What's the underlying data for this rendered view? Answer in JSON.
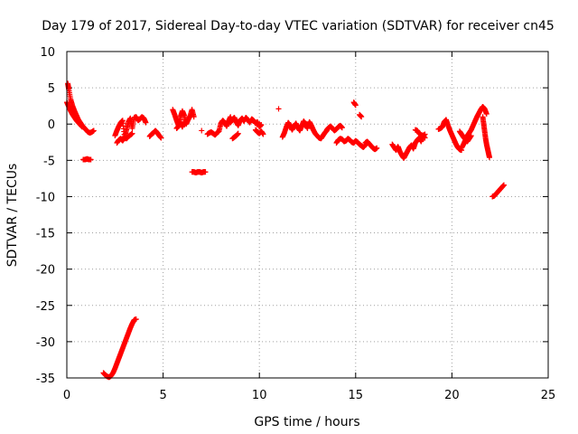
{
  "chart_data": {
    "type": "scatter",
    "title": "Day 179 of 2017, Sidereal Day-to-day VTEC variation (SDTVAR) for receiver cn45",
    "xlabel": "GPS time / hours",
    "ylabel": "SDTVAR / TECUs",
    "xlim": [
      0,
      25
    ],
    "ylim": [
      -35,
      10
    ],
    "xticks": [
      0,
      5,
      10,
      15,
      20,
      25
    ],
    "yticks": [
      10,
      5,
      0,
      -5,
      -10,
      -15,
      -20,
      -25,
      -30,
      -35
    ],
    "grid": true,
    "marker": "plus",
    "color": "#ff0000",
    "segments": [
      {
        "x": [
          0.05,
          0.1,
          0.2,
          0.3,
          0.4,
          0.5,
          0.6,
          0.7,
          0.8,
          0.9,
          1.0,
          1.1,
          1.2,
          1.3,
          1.4
        ],
        "y": [
          5.6,
          4.8,
          3.4,
          2.5,
          1.8,
          1.2,
          0.6,
          0.2,
          -0.2,
          -0.5,
          -0.8,
          -1.1,
          -1.2,
          -1.1,
          -0.9
        ]
      },
      {
        "x": [
          0.0,
          0.1,
          0.2,
          0.3,
          0.4,
          0.5,
          0.6,
          0.7,
          0.8
        ],
        "y": [
          3.0,
          2.4,
          1.8,
          1.3,
          0.9,
          0.5,
          0.2,
          -0.1,
          -0.4
        ]
      },
      {
        "x": [
          0.85,
          0.95,
          1.05,
          1.15,
          1.25
        ],
        "y": [
          -4.9,
          -4.9,
          -4.8,
          -4.9,
          -4.9
        ]
      },
      {
        "x": [
          1.9,
          2.0,
          2.1,
          2.2,
          2.3,
          2.4,
          2.5,
          2.6,
          2.7,
          2.8,
          2.9,
          3.0,
          3.1,
          3.2,
          3.3,
          3.4,
          3.5,
          3.6
        ],
        "y": [
          -34.3,
          -34.6,
          -34.8,
          -34.9,
          -34.7,
          -34.3,
          -33.7,
          -33.0,
          -32.3,
          -31.6,
          -30.9,
          -30.2,
          -29.5,
          -28.8,
          -28.1,
          -27.5,
          -27.0,
          -26.9
        ]
      },
      {
        "x": [
          2.5,
          2.6,
          2.7,
          2.8,
          2.9,
          3.0,
          3.1,
          3.2,
          3.3,
          3.4,
          3.5,
          3.6,
          3.7,
          3.8,
          3.9,
          4.0,
          4.1
        ],
        "y": [
          -1.6,
          -0.9,
          -0.3,
          0.2,
          0.5,
          -1.8,
          -0.8,
          0.3,
          0.8,
          -0.6,
          0.9,
          1.0,
          0.5,
          0.7,
          1.0,
          0.8,
          0.2
        ]
      },
      {
        "x": [
          2.6,
          2.7,
          2.8,
          2.9,
          3.0,
          3.1,
          3.2,
          3.3,
          3.4
        ],
        "y": [
          -2.6,
          -2.2,
          -2.0,
          -2.3,
          -1.9,
          -2.0,
          -1.7,
          -1.5,
          -1.3
        ]
      },
      {
        "x": [
          4.3,
          4.4,
          4.5,
          4.6,
          4.7,
          4.8,
          4.9
        ],
        "y": [
          -1.7,
          -1.4,
          -1.2,
          -0.9,
          -1.2,
          -1.6,
          -1.9
        ]
      },
      {
        "x": [
          5.5,
          5.6,
          5.7,
          5.8,
          5.9,
          6.0,
          6.1,
          6.2,
          6.3,
          6.4,
          6.5,
          6.6
        ],
        "y": [
          2.0,
          1.3,
          0.5,
          -0.2,
          1.0,
          1.8,
          1.2,
          0.0,
          0.6,
          1.1,
          2.0,
          1.0
        ]
      },
      {
        "x": [
          5.7,
          5.8,
          5.9,
          6.0,
          6.1
        ],
        "y": [
          -0.6,
          -0.3,
          0.2,
          -0.4,
          0.3
        ]
      },
      {
        "x": [
          6.5,
          6.6,
          6.7,
          6.8,
          6.9,
          7.0,
          7.1,
          7.2
        ],
        "y": [
          -6.6,
          -6.6,
          -6.7,
          -6.6,
          -6.6,
          -6.7,
          -6.6,
          -6.6
        ]
      },
      {
        "x": [
          7.0
        ],
        "y": [
          -0.9
        ]
      },
      {
        "x": [
          7.3,
          7.4,
          7.5,
          7.6,
          7.7,
          7.8,
          7.9,
          8.0,
          8.1,
          8.2,
          8.3,
          8.4,
          8.5
        ],
        "y": [
          -1.4,
          -1.2,
          -1.1,
          -1.3,
          -1.5,
          -1.2,
          -1.0,
          0.1,
          0.5,
          0.2,
          -0.3,
          0.4,
          1.0
        ]
      },
      {
        "x": [
          8.5,
          8.6,
          8.7,
          8.8,
          8.9,
          9.0,
          9.1,
          9.2,
          9.3,
          9.4,
          9.5,
          9.6,
          9.7,
          9.8,
          9.9,
          10.0,
          10.1
        ],
        "y": [
          0.2,
          0.6,
          0.9,
          0.3,
          -0.2,
          0.5,
          0.8,
          0.4,
          0.9,
          0.6,
          0.2,
          0.7,
          0.5,
          0.1,
          0.3,
          -0.4,
          -0.1
        ]
      },
      {
        "x": [
          8.6,
          8.7,
          8.8,
          8.9
        ],
        "y": [
          -2.0,
          -1.8,
          -1.6,
          -1.3
        ]
      },
      {
        "x": [
          9.8,
          9.9,
          10.0,
          10.1,
          10.2
        ],
        "y": [
          -0.8,
          -1.1,
          -1.3,
          -1.0,
          -1.4
        ]
      },
      {
        "x": [
          11.0
        ],
        "y": [
          2.1
        ]
      },
      {
        "x": [
          11.2,
          11.3,
          11.4,
          11.5,
          11.6,
          11.7,
          11.8,
          11.9,
          12.0,
          12.1,
          12.2,
          12.3,
          12.4,
          12.5
        ],
        "y": [
          -1.8,
          -1.2,
          -0.4,
          0.2,
          -0.2,
          -0.8,
          -0.3,
          0.1,
          -0.5,
          -0.9,
          -0.3,
          0.4,
          0.0,
          -0.6
        ]
      },
      {
        "x": [
          12.5,
          12.6,
          12.7,
          12.8,
          12.9,
          13.0,
          13.1,
          13.2,
          13.3,
          13.4,
          13.5
        ],
        "y": [
          -0.4,
          0.3,
          -0.2,
          -0.8,
          -1.3,
          -1.6,
          -1.9,
          -2.0,
          -1.6,
          -1.2,
          -0.9
        ]
      },
      {
        "x": [
          13.5,
          13.6,
          13.7,
          13.8,
          13.9,
          14.0,
          14.1,
          14.2,
          14.3
        ],
        "y": [
          -0.8,
          -0.5,
          -0.3,
          -0.6,
          -0.9,
          -0.7,
          -0.4,
          -0.2,
          -0.5
        ]
      },
      {
        "x": [
          14.0,
          14.1,
          14.2,
          14.3,
          14.4,
          14.5,
          14.6,
          14.7,
          14.8,
          14.9,
          15.0,
          15.1,
          15.2,
          15.3,
          15.4,
          15.5
        ],
        "y": [
          -2.6,
          -2.2,
          -2.0,
          -2.1,
          -2.4,
          -2.3,
          -2.0,
          -2.2,
          -2.5,
          -2.6,
          -2.3,
          -2.5,
          -2.8,
          -3.0,
          -3.2,
          -2.9
        ]
      },
      {
        "x": [
          14.9,
          15.0
        ],
        "y": [
          3.0,
          2.6
        ]
      },
      {
        "x": [
          15.2,
          15.3
        ],
        "y": [
          1.3,
          1.0
        ]
      },
      {
        "x": [
          15.5,
          15.6,
          15.7,
          15.8,
          15.9,
          16.0,
          16.1
        ],
        "y": [
          -2.6,
          -2.4,
          -2.7,
          -3.0,
          -3.3,
          -3.5,
          -3.3
        ]
      },
      {
        "x": [
          16.9,
          17.0,
          17.1,
          17.2,
          17.3,
          17.4,
          17.5,
          17.6,
          17.7,
          17.8,
          17.9,
          18.0,
          18.1,
          18.2,
          18.3,
          18.4,
          18.5,
          18.6
        ],
        "y": [
          -2.8,
          -3.2,
          -3.6,
          -3.1,
          -3.8,
          -4.3,
          -4.7,
          -4.2,
          -3.7,
          -3.2,
          -2.9,
          -3.4,
          -2.6,
          -2.2,
          -1.9,
          -2.4,
          -1.6,
          -1.9
        ]
      },
      {
        "x": [
          18.1,
          18.2,
          18.3,
          18.4,
          18.5,
          18.6
        ],
        "y": [
          -0.8,
          -0.9,
          -1.3,
          -1.5,
          -1.6,
          -1.4
        ]
      },
      {
        "x": [
          19.3,
          19.4,
          19.5,
          19.6,
          19.7,
          19.8,
          19.9,
          20.0,
          20.1,
          20.2,
          20.3,
          20.4,
          20.5
        ],
        "y": [
          -0.7,
          -0.6,
          -0.4,
          0.3,
          0.6,
          -0.2,
          -0.9,
          -1.5,
          -2.1,
          -2.7,
          -3.2,
          -3.5,
          -3.6
        ]
      },
      {
        "x": [
          20.5,
          20.6,
          20.7,
          20.8,
          20.9,
          21.0,
          21.1,
          21.2,
          21.3,
          21.4,
          21.5,
          21.6,
          21.7,
          21.8
        ],
        "y": [
          -3.3,
          -2.8,
          -2.2,
          -1.6,
          -1.2,
          -0.8,
          -0.2,
          0.4,
          1.0,
          1.5,
          2.0,
          2.4,
          2.1,
          1.4
        ]
      },
      {
        "x": [
          20.4,
          20.5,
          20.6,
          20.7,
          20.8,
          20.9,
          21.0
        ],
        "y": [
          -1.0,
          -1.4,
          -1.8,
          -2.1,
          -2.4,
          -2.0,
          -1.6
        ]
      },
      {
        "x": [
          21.6,
          21.65,
          21.7,
          21.75,
          21.8,
          21.85,
          21.9,
          21.95
        ],
        "y": [
          1.0,
          0.0,
          -1.0,
          -2.0,
          -2.8,
          -3.4,
          -4.0,
          -4.6
        ]
      },
      {
        "x": [
          22.1,
          22.2,
          22.3,
          22.4,
          22.5,
          22.6,
          22.7
        ],
        "y": [
          -10.0,
          -9.9,
          -9.6,
          -9.3,
          -9.0,
          -8.7,
          -8.4
        ]
      }
    ]
  }
}
